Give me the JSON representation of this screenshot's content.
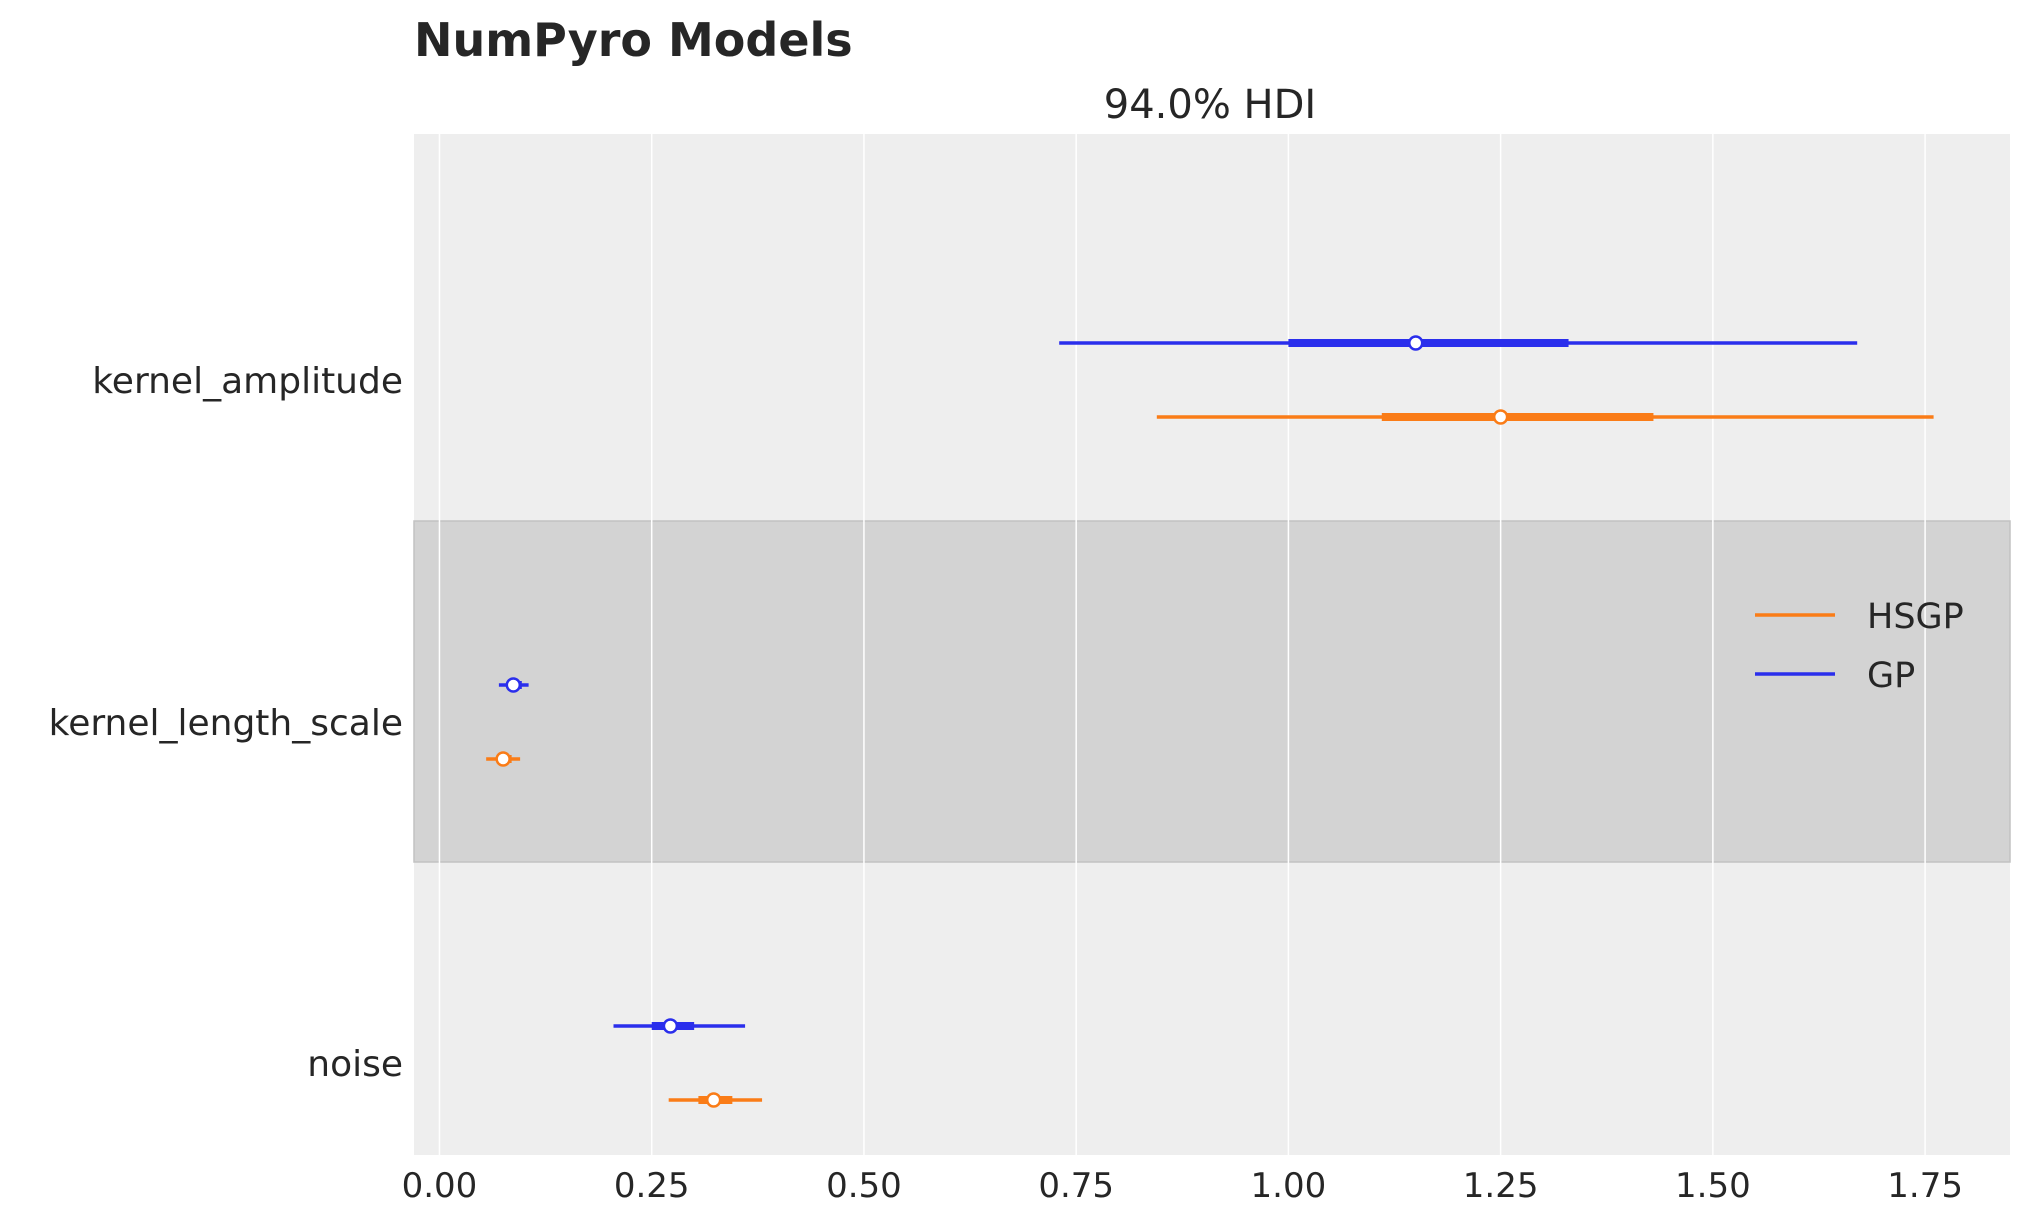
{
  "colors": {
    "background": "#ffffff",
    "axes_bg": "#eeeeee",
    "grid": "#ffffff",
    "band": "#d3d3d3",
    "band_edge": "#c2c2c2",
    "text": "#262626",
    "marker_face": "#ffffff"
  },
  "chart_data": {
    "type": "forest",
    "suptitle": "NumPyro Models",
    "title": "94.0% HDI",
    "xlabel": "",
    "ylabel": "",
    "xlim": [
      -0.03,
      1.85
    ],
    "xticks": [
      0.0,
      0.25,
      0.5,
      0.75,
      1.0,
      1.25,
      1.5,
      1.75
    ],
    "xtick_labels": [
      "0.00",
      "0.25",
      "0.50",
      "0.75",
      "1.00",
      "1.25",
      "1.50",
      "1.75"
    ],
    "grid": "vertical",
    "legend": {
      "position": "right",
      "entries": [
        "HSGP",
        "GP"
      ]
    },
    "parameters": [
      "kernel_amplitude",
      "kernel_length_scale",
      "noise"
    ],
    "highlighted_parameter": "kernel_length_scale",
    "series": [
      {
        "name": "GP",
        "color": "#2a2eec",
        "intervals": [
          {
            "parameter": "kernel_amplitude",
            "hdi_low": 0.73,
            "hdi_high": 1.67,
            "iqr_low": 1.0,
            "iqr_high": 1.33,
            "median": 1.15
          },
          {
            "parameter": "kernel_length_scale",
            "hdi_low": 0.07,
            "hdi_high": 0.105,
            "iqr_low": 0.082,
            "iqr_high": 0.097,
            "median": 0.087
          },
          {
            "parameter": "noise",
            "hdi_low": 0.205,
            "hdi_high": 0.36,
            "iqr_low": 0.25,
            "iqr_high": 0.3,
            "median": 0.272
          }
        ]
      },
      {
        "name": "HSGP",
        "color": "#fa7c17",
        "intervals": [
          {
            "parameter": "kernel_amplitude",
            "hdi_low": 0.845,
            "hdi_high": 1.76,
            "iqr_low": 1.11,
            "iqr_high": 1.43,
            "median": 1.25
          },
          {
            "parameter": "kernel_length_scale",
            "hdi_low": 0.055,
            "hdi_high": 0.095,
            "iqr_low": 0.068,
            "iqr_high": 0.085,
            "median": 0.075
          },
          {
            "parameter": "noise",
            "hdi_low": 0.27,
            "hdi_high": 0.38,
            "iqr_low": 0.305,
            "iqr_high": 0.345,
            "median": 0.323
          }
        ]
      }
    ]
  }
}
